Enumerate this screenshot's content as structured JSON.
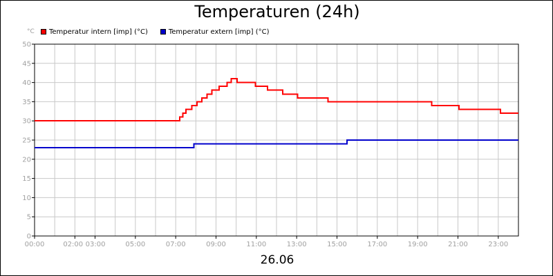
{
  "chart_data": {
    "type": "line",
    "title": "Temperaturen (24h)",
    "y_unit_label": "°C",
    "date_label": "26.06",
    "ylim": [
      0,
      50
    ],
    "y_ticks": [
      "0",
      "5",
      "10",
      "15",
      "20",
      "25",
      "30",
      "35",
      "40",
      "45",
      "50"
    ],
    "x_range_hours": [
      0,
      24
    ],
    "x_ticks": [
      {
        "hour": 0,
        "label": "00:00"
      },
      {
        "hour": 2,
        "label": "02:00"
      },
      {
        "hour": 3,
        "label": "03:00"
      },
      {
        "hour": 5,
        "label": "05:00"
      },
      {
        "hour": 7,
        "label": "07:00"
      },
      {
        "hour": 9,
        "label": "09:00"
      },
      {
        "hour": 11,
        "label": "11:00"
      },
      {
        "hour": 13,
        "label": "13:00"
      },
      {
        "hour": 15,
        "label": "15:00"
      },
      {
        "hour": 17,
        "label": "17:00"
      },
      {
        "hour": 19,
        "label": "19:00"
      },
      {
        "hour": 21,
        "label": "21:00"
      },
      {
        "hour": 23,
        "label": "23:00"
      }
    ],
    "grid": true,
    "legend_position": "top-left",
    "series": [
      {
        "name": "Temperatur intern [imp] (°C)",
        "color": "#ff0000",
        "points": [
          [
            0.0,
            30
          ],
          [
            7.1,
            30
          ],
          [
            7.2,
            31
          ],
          [
            7.35,
            32
          ],
          [
            7.5,
            33
          ],
          [
            7.8,
            34
          ],
          [
            8.05,
            35
          ],
          [
            8.3,
            36
          ],
          [
            8.55,
            37
          ],
          [
            8.8,
            38
          ],
          [
            9.15,
            39
          ],
          [
            9.55,
            40
          ],
          [
            9.75,
            41
          ],
          [
            10.05,
            40
          ],
          [
            10.95,
            39
          ],
          [
            11.55,
            38
          ],
          [
            12.3,
            37
          ],
          [
            13.05,
            36
          ],
          [
            14.55,
            35
          ],
          [
            19.7,
            34
          ],
          [
            21.05,
            33
          ],
          [
            23.1,
            32
          ],
          [
            24.0,
            32
          ]
        ]
      },
      {
        "name": "Temperatur extern [imp] (°C)",
        "color": "#0000cc",
        "points": [
          [
            0.0,
            23
          ],
          [
            7.9,
            24
          ],
          [
            15.5,
            25
          ],
          [
            24.0,
            25
          ]
        ]
      }
    ]
  }
}
